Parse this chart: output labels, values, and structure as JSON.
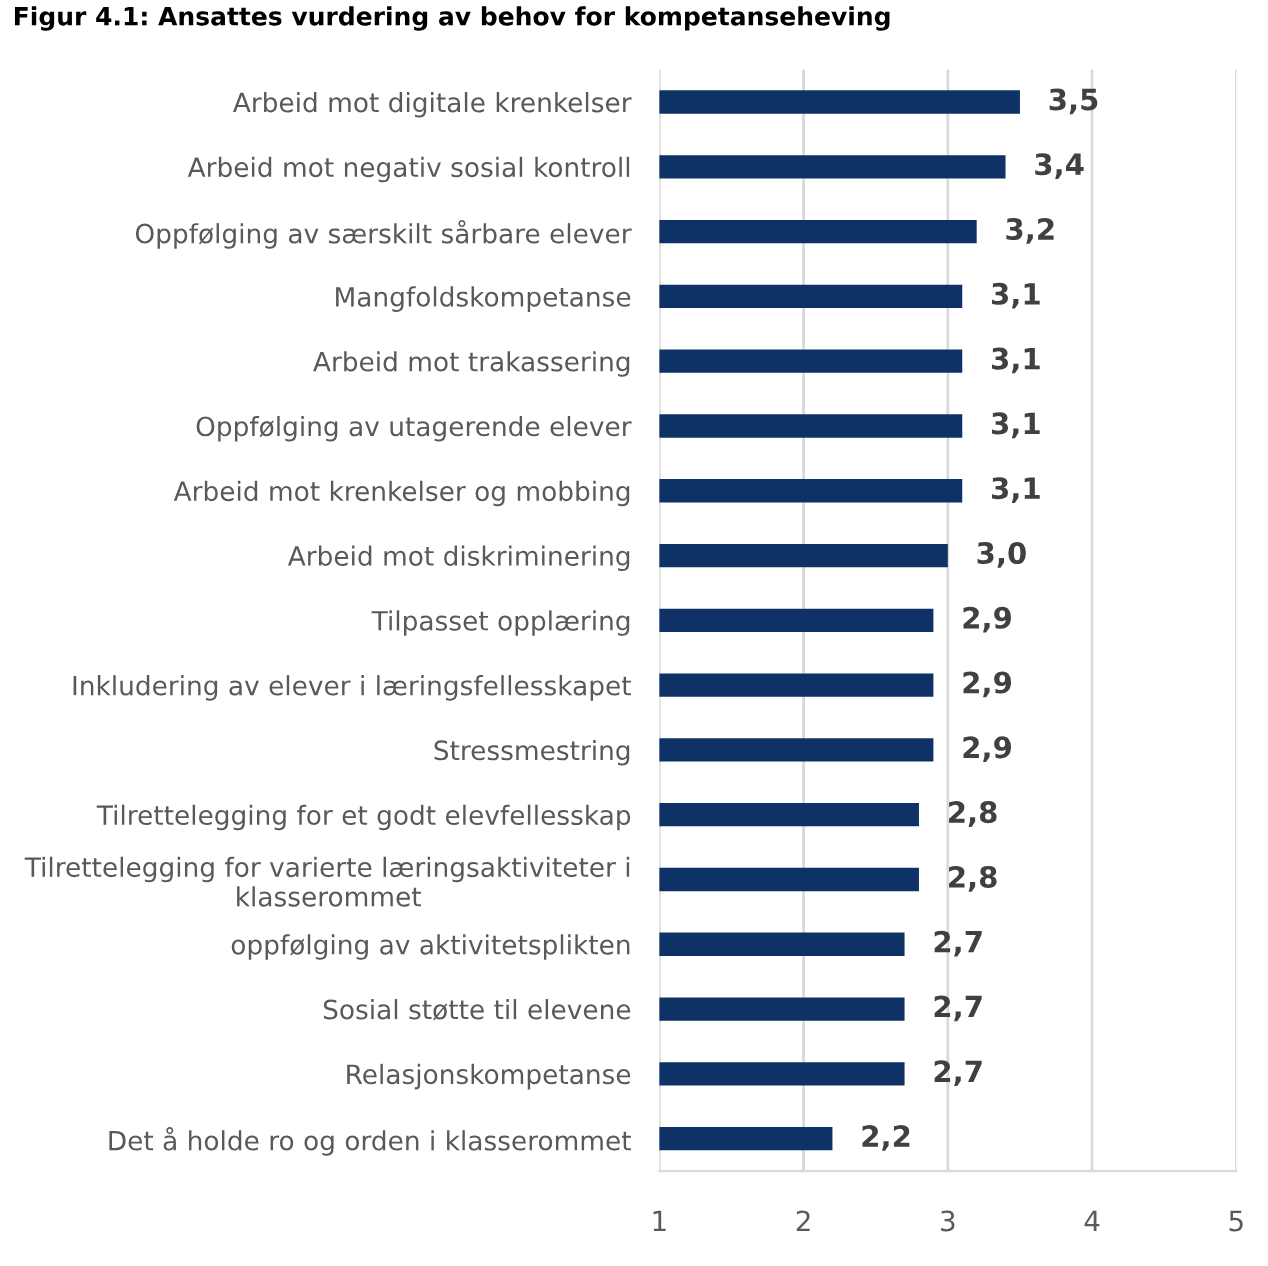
{
  "chart_data": {
    "type": "bar",
    "orientation": "horizontal",
    "title": "Figur 4.1: Ansattes vurdering av behov for kompetanseheving",
    "categories": [
      "Arbeid mot digitale krenkelser",
      "Arbeid mot negativ sosial kontroll",
      "Oppfølging av særskilt sårbare elever",
      "Mangfoldskompetanse",
      "Arbeid mot trakassering",
      "Oppfølging av utagerende elever",
      "Arbeid mot krenkelser og mobbing",
      "Arbeid mot diskriminering",
      "Tilpasset opplæring",
      "Inkludering av elever i læringsfellesskapet",
      "Stressmestring",
      "Tilrettelegging for et godt elevfellesskap",
      "Tilrettelegging for varierte læringsaktiviteter i klasserommet",
      "oppfølging av aktivitetsplikten",
      "Sosial støtte til elevene",
      "Relasjonskompetanse",
      "Det å holde ro og orden i klasserommet"
    ],
    "values": [
      3.5,
      3.4,
      3.2,
      3.1,
      3.1,
      3.1,
      3.1,
      3.0,
      2.9,
      2.9,
      2.9,
      2.8,
      2.8,
      2.7,
      2.7,
      2.7,
      2.2
    ],
    "value_labels": [
      "3,5",
      "3,4",
      "3,2",
      "3,1",
      "3,1",
      "3,1",
      "3,1",
      "3,0",
      "2,9",
      "2,9",
      "2,9",
      "2,8",
      "2,8",
      "2,7",
      "2,7",
      "2,7",
      "2,2"
    ],
    "color": "#0e3266",
    "xlim": [
      1,
      5
    ],
    "xticks": [
      1,
      2,
      3,
      4,
      5
    ],
    "grid": "x"
  }
}
